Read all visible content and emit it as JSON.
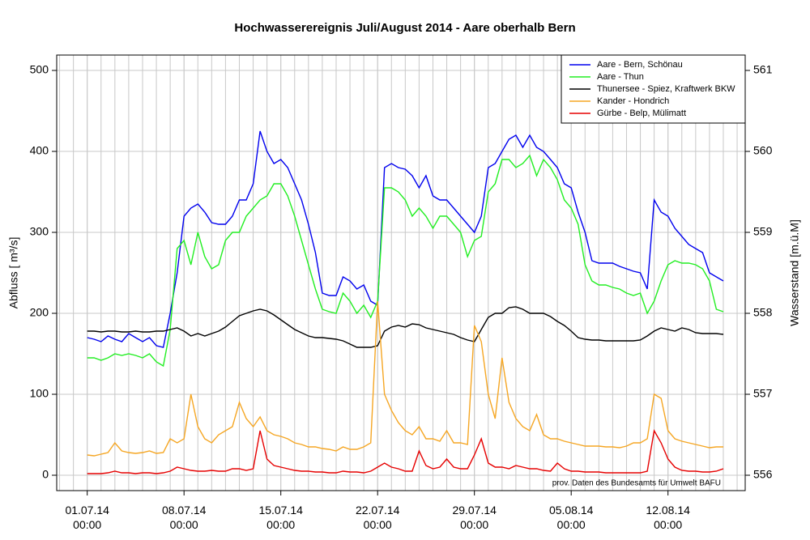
{
  "chart_data": {
    "type": "line",
    "title": "Hochwasserereignis Juli/August 2014 - Aare oberhalb Bern",
    "y_label": "Abfluss [ m³/s]",
    "y2_label": "Wasserstand [m.ü.M]",
    "annotation": "prov. Daten des Bundesamts für Umwelt BAFU",
    "legend": "top-right",
    "grid": true,
    "xlim": [
      "28.06.14 19:00",
      "17.08.14 14:00"
    ],
    "xticks": [
      {
        "value": "01.07.14 00:00",
        "label": "01.07.14\n00:00"
      },
      {
        "value": "08.07.14 00:00",
        "label": "08.07.14\n00:00"
      },
      {
        "value": "15.07.14 00:00",
        "label": "15.07.14\n00:00"
      },
      {
        "value": "22.07.14 00:00",
        "label": "22.07.14\n00:00"
      },
      {
        "value": "29.07.14 00:00",
        "label": "29.07.14\n00:00"
      },
      {
        "value": "05.08.14 00:00",
        "label": "05.08.14\n00:00"
      },
      {
        "value": "12.08.14 00:00",
        "label": "12.08.14\n00:00"
      }
    ],
    "ylim": [
      -19,
      519
    ],
    "yticks": [
      0,
      100,
      200,
      300,
      400,
      500
    ],
    "y2lim": [
      555.81,
      561.19
    ],
    "y2ticks": [
      556,
      557,
      558,
      559,
      560,
      561
    ],
    "x": [
      "01.07.14 00:00",
      "01.07.14 12:00",
      "02.07.14 00:00",
      "02.07.14 12:00",
      "03.07.14 00:00",
      "03.07.14 12:00",
      "04.07.14 00:00",
      "04.07.14 12:00",
      "05.07.14 00:00",
      "05.07.14 12:00",
      "06.07.14 00:00",
      "06.07.14 12:00",
      "07.07.14 00:00",
      "07.07.14 12:00",
      "08.07.14 00:00",
      "08.07.14 12:00",
      "09.07.14 00:00",
      "09.07.14 12:00",
      "10.07.14 00:00",
      "10.07.14 12:00",
      "11.07.14 00:00",
      "11.07.14 12:00",
      "12.07.14 00:00",
      "12.07.14 12:00",
      "13.07.14 00:00",
      "13.07.14 12:00",
      "14.07.14 00:00",
      "14.07.14 12:00",
      "15.07.14 00:00",
      "15.07.14 12:00",
      "16.07.14 00:00",
      "16.07.14 12:00",
      "17.07.14 00:00",
      "17.07.14 12:00",
      "18.07.14 00:00",
      "18.07.14 12:00",
      "19.07.14 00:00",
      "19.07.14 12:00",
      "20.07.14 00:00",
      "20.07.14 12:00",
      "21.07.14 00:00",
      "21.07.14 12:00",
      "22.07.14 00:00",
      "22.07.14 12:00",
      "23.07.14 00:00",
      "23.07.14 12:00",
      "24.07.14 00:00",
      "24.07.14 12:00",
      "25.07.14 00:00",
      "25.07.14 12:00",
      "26.07.14 00:00",
      "26.07.14 12:00",
      "27.07.14 00:00",
      "27.07.14 12:00",
      "28.07.14 00:00",
      "28.07.14 12:00",
      "29.07.14 00:00",
      "29.07.14 12:00",
      "30.07.14 00:00",
      "30.07.14 12:00",
      "31.07.14 00:00",
      "31.07.14 12:00",
      "01.08.14 00:00",
      "01.08.14 12:00",
      "02.08.14 00:00",
      "02.08.14 12:00",
      "03.08.14 00:00",
      "03.08.14 12:00",
      "04.08.14 00:00",
      "04.08.14 12:00",
      "05.08.14 00:00",
      "05.08.14 12:00",
      "06.08.14 00:00",
      "06.08.14 12:00",
      "07.08.14 00:00",
      "07.08.14 12:00",
      "08.08.14 00:00",
      "08.08.14 12:00",
      "09.08.14 00:00",
      "09.08.14 12:00",
      "10.08.14 00:00",
      "10.08.14 12:00",
      "11.08.14 00:00",
      "11.08.14 12:00",
      "12.08.14 00:00",
      "12.08.14 12:00",
      "13.08.14 00:00",
      "13.08.14 12:00",
      "14.08.14 00:00",
      "14.08.14 12:00",
      "15.08.14 00:00",
      "15.08.14 12:00",
      "16.08.14 00:00"
    ],
    "series": [
      {
        "name": "Aare - Bern, Schönau",
        "color": "#0000ee",
        "values": [
          170,
          168,
          165,
          172,
          168,
          165,
          175,
          170,
          165,
          170,
          160,
          158,
          200,
          250,
          320,
          330,
          335,
          325,
          312,
          310,
          310,
          320,
          340,
          340,
          360,
          425,
          400,
          385,
          390,
          380,
          360,
          340,
          310,
          275,
          225,
          222,
          222,
          245,
          240,
          230,
          235,
          215,
          210,
          380,
          385,
          380,
          378,
          370,
          355,
          370,
          345,
          340,
          340,
          330,
          320,
          310,
          300,
          320,
          380,
          385,
          400,
          415,
          420,
          405,
          420,
          405,
          400,
          390,
          380,
          360,
          355,
          325,
          300,
          265,
          262,
          262,
          262,
          258,
          255,
          252,
          250,
          230,
          340,
          325,
          320,
          305,
          295,
          285,
          280,
          275,
          250,
          245,
          240
        ]
      },
      {
        "name": "Aare - Thun",
        "color": "#22ee22",
        "values": [
          145,
          145,
          142,
          145,
          150,
          148,
          150,
          148,
          145,
          150,
          140,
          135,
          180,
          280,
          290,
          260,
          300,
          270,
          255,
          260,
          290,
          300,
          300,
          320,
          330,
          340,
          345,
          360,
          360,
          345,
          320,
          290,
          260,
          230,
          205,
          202,
          200,
          225,
          215,
          200,
          210,
          195,
          215,
          355,
          355,
          350,
          340,
          320,
          330,
          320,
          305,
          320,
          320,
          310,
          300,
          270,
          290,
          295,
          350,
          360,
          390,
          390,
          380,
          385,
          395,
          370,
          390,
          380,
          365,
          340,
          330,
          310,
          260,
          240,
          235,
          235,
          232,
          230,
          225,
          222,
          225,
          200,
          215,
          240,
          260,
          265,
          262,
          262,
          260,
          255,
          240,
          205,
          202
        ]
      },
      {
        "name": "Thunersee - Spiez, Kraftwerk BKW",
        "color": "#000000",
        "axis": "y2",
        "values": [
          557.78,
          557.78,
          557.77,
          557.78,
          557.78,
          557.77,
          557.77,
          557.78,
          557.77,
          557.77,
          557.78,
          557.78,
          557.8,
          557.82,
          557.78,
          557.72,
          557.75,
          557.72,
          557.75,
          557.78,
          557.83,
          557.9,
          557.97,
          558,
          558.03,
          558.05,
          558.03,
          557.98,
          557.92,
          557.86,
          557.8,
          557.76,
          557.72,
          557.7,
          557.7,
          557.69,
          557.68,
          557.66,
          557.62,
          557.58,
          557.58,
          557.58,
          557.6,
          557.78,
          557.83,
          557.85,
          557.83,
          557.87,
          557.86,
          557.82,
          557.8,
          557.78,
          557.76,
          557.74,
          557.7,
          557.67,
          557.65,
          557.8,
          557.95,
          558,
          558,
          558.07,
          558.08,
          558.05,
          558,
          558,
          558,
          557.96,
          557.9,
          557.85,
          557.78,
          557.7,
          557.68,
          557.67,
          557.67,
          557.66,
          557.66,
          557.66,
          557.66,
          557.66,
          557.67,
          557.72,
          557.78,
          557.82,
          557.8,
          557.78,
          557.82,
          557.8,
          557.76,
          557.75,
          557.75,
          557.75,
          557.74
        ]
      },
      {
        "name": "Kander - Hondrich",
        "color": "#f5a623",
        "values": [
          25,
          24,
          26,
          28,
          40,
          30,
          28,
          27,
          28,
          30,
          27,
          28,
          45,
          40,
          45,
          100,
          60,
          45,
          40,
          50,
          55,
          60,
          90,
          70,
          60,
          72,
          55,
          50,
          48,
          45,
          40,
          38,
          35,
          35,
          33,
          32,
          30,
          35,
          32,
          32,
          35,
          40,
          215,
          100,
          80,
          65,
          55,
          50,
          60,
          45,
          45,
          42,
          55,
          40,
          40,
          38,
          185,
          165,
          100,
          70,
          145,
          90,
          70,
          60,
          55,
          75,
          50,
          45,
          45,
          42,
          40,
          38,
          36,
          36,
          36,
          35,
          35,
          34,
          36,
          40,
          40,
          45,
          100,
          95,
          55,
          45,
          42,
          40,
          38,
          36,
          34,
          35,
          35
        ]
      },
      {
        "name": "Gürbe - Belp, Mülimatt",
        "color": "#e60000",
        "values": [
          2,
          2,
          2,
          3,
          5,
          3,
          3,
          2,
          3,
          3,
          2,
          3,
          5,
          10,
          8,
          6,
          5,
          5,
          6,
          5,
          5,
          8,
          8,
          6,
          8,
          55,
          20,
          12,
          10,
          8,
          6,
          5,
          5,
          4,
          4,
          3,
          3,
          5,
          4,
          4,
          3,
          5,
          10,
          15,
          10,
          8,
          5,
          5,
          30,
          12,
          8,
          10,
          20,
          10,
          8,
          8,
          25,
          45,
          15,
          10,
          10,
          8,
          12,
          10,
          8,
          8,
          6,
          5,
          15,
          8,
          5,
          5,
          4,
          4,
          4,
          3,
          3,
          3,
          3,
          3,
          3,
          5,
          55,
          40,
          20,
          10,
          6,
          5,
          5,
          4,
          4,
          5,
          8
        ]
      }
    ]
  }
}
